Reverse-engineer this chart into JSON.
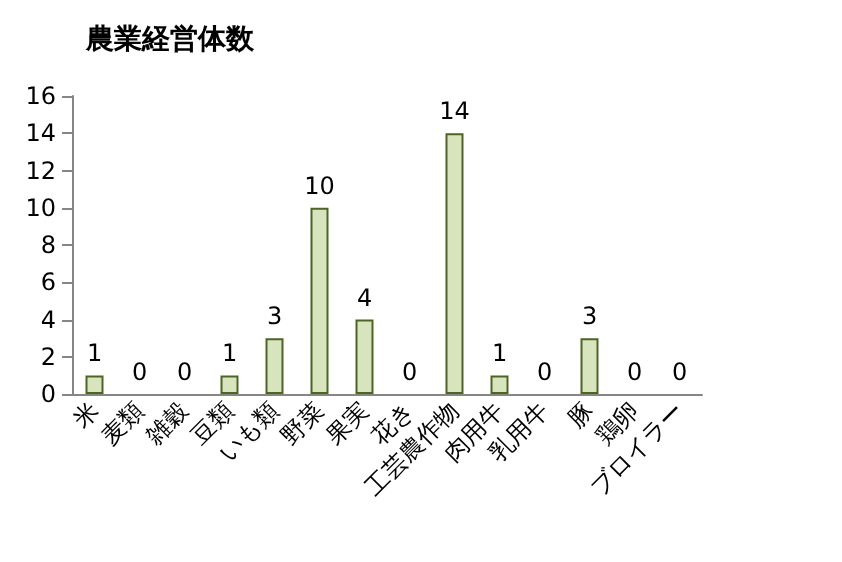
{
  "chart_data": {
    "type": "bar",
    "title": "農業経営体数",
    "categories": [
      "米",
      "麦類",
      "雑穀",
      "豆類",
      "いも類",
      "野菜",
      "果実",
      "花き",
      "工芸農作物",
      "肉用牛",
      "乳用牛",
      "豚",
      "鶏卵",
      "ブロイラー"
    ],
    "values": [
      1,
      0,
      0,
      1,
      3,
      10,
      4,
      0,
      14,
      1,
      0,
      3,
      0,
      0
    ],
    "color": "#d7e4bd",
    "ylim": [
      0,
      16
    ],
    "yticks": [
      0,
      2,
      4,
      6,
      8,
      10,
      12,
      14,
      16
    ],
    "data_labels": true,
    "grid": false
  }
}
